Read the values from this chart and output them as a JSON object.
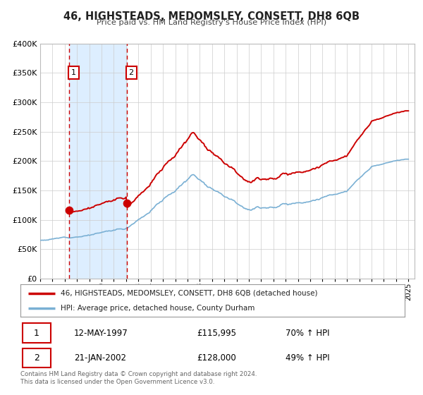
{
  "title": "46, HIGHSTEADS, MEDOMSLEY, CONSETT, DH8 6QB",
  "subtitle": "Price paid vs. HM Land Registry's House Price Index (HPI)",
  "ylim": [
    0,
    400000
  ],
  "xlim_start": 1995.0,
  "xlim_end": 2025.5,
  "sale1_date": 1997.36,
  "sale1_price": 115995,
  "sale1_label": "1",
  "sale1_text": "12-MAY-1997",
  "sale1_amount": "£115,995",
  "sale1_hpi": "70% ↑ HPI",
  "sale2_date": 2002.06,
  "sale2_price": 128000,
  "sale2_label": "2",
  "sale2_text": "21-JAN-2002",
  "sale2_amount": "£128,000",
  "sale2_hpi": "49% ↑ HPI",
  "red_color": "#cc0000",
  "blue_color": "#7ab0d4",
  "shade_color": "#ddeeff",
  "grid_color": "#cccccc",
  "background_color": "#ffffff",
  "legend1": "46, HIGHSTEADS, MEDOMSLEY, CONSETT, DH8 6QB (detached house)",
  "legend2": "HPI: Average price, detached house, County Durham",
  "footnote": "Contains HM Land Registry data © Crown copyright and database right 2024.\nThis data is licensed under the Open Government Licence v3.0.",
  "ytick_labels": [
    "£0",
    "£50K",
    "£100K",
    "£150K",
    "£200K",
    "£250K",
    "£300K",
    "£350K",
    "£400K"
  ],
  "ytick_values": [
    0,
    50000,
    100000,
    150000,
    200000,
    250000,
    300000,
    350000,
    400000
  ],
  "hpi_base_1995": 65000,
  "hpi_scale_sale1": 1.706,
  "hpi_scale_sale2": 1.49
}
